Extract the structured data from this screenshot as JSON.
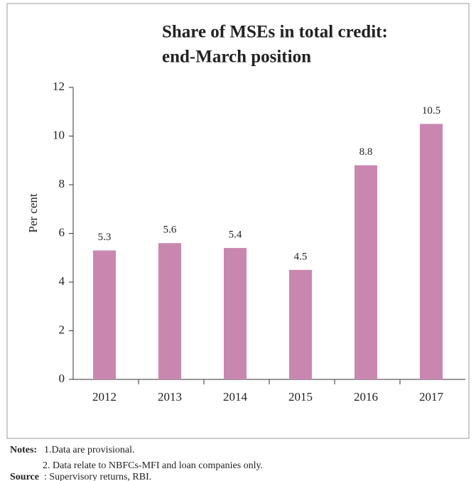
{
  "chart_data": {
    "type": "bar",
    "title": [
      "Share of MSEs in total credit:",
      "end-March position"
    ],
    "y_label": "Per cent",
    "categories": [
      "2012",
      "2013",
      "2014",
      "2015",
      "2016",
      "2017"
    ],
    "values": [
      5.3,
      5.6,
      5.4,
      4.5,
      8.8,
      10.5
    ],
    "color": "#c987b0",
    "ylim": [
      0,
      12
    ],
    "yticks": [
      0,
      2,
      4,
      6,
      8,
      10,
      12
    ],
    "grid": false
  },
  "notes": {
    "label": "Notes:",
    "items": [
      "1.Data are provisional.",
      "2. Data relate to NBFCs-MFI and loan companies only."
    ]
  },
  "source": {
    "label": "Source",
    "text": ": Supervisory returns, RBI."
  }
}
